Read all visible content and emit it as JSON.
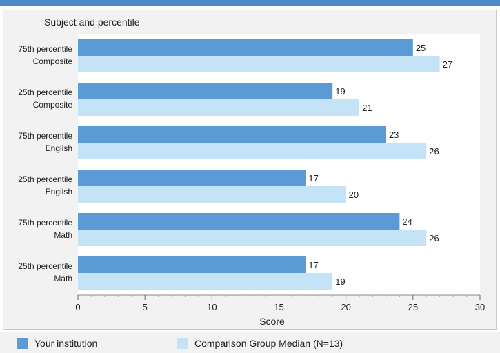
{
  "chart_data": {
    "type": "bar",
    "orientation": "horizontal",
    "title": "Subject and percentile",
    "xlabel": "Score",
    "xlim": [
      0,
      30
    ],
    "xticks": [
      0,
      5,
      10,
      15,
      20,
      25,
      30
    ],
    "grid": false,
    "legend_position": "bottom",
    "categories": [
      [
        "75th percentile",
        "Composite"
      ],
      [
        "25th percentile",
        "Composite"
      ],
      [
        "75th percentile",
        "English"
      ],
      [
        "25th percentile",
        "English"
      ],
      [
        "75th percentile",
        "Math"
      ],
      [
        "25th percentile",
        "Math"
      ]
    ],
    "series": [
      {
        "name": "Your institution",
        "color": "#5a9bd5",
        "values": [
          25,
          19,
          23,
          17,
          24,
          17
        ]
      },
      {
        "name": "Comparison Group Median (N=13)",
        "color": "#c5e3f6",
        "values": [
          27,
          21,
          26,
          20,
          26,
          19
        ]
      }
    ]
  },
  "colors": {
    "header_bar": "#4a8ac6",
    "panel_background": "#f2f2f2"
  }
}
